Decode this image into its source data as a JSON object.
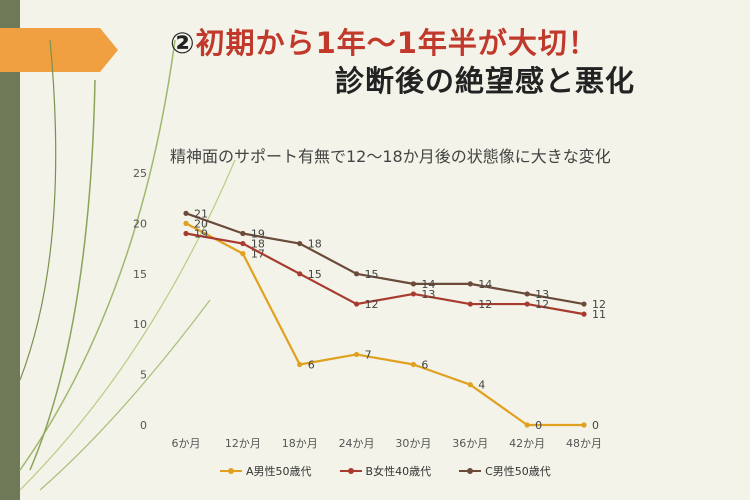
{
  "header": {
    "num": "②",
    "title_line1": "初期から1年～1年半が大切！",
    "title_line2": "診断後の絶望感と悪化"
  },
  "chart_data": {
    "type": "line",
    "title": "精神面のサポート有無で12～18か月後の状態像に大きな変化",
    "categories": [
      "6か月",
      "12か月",
      "18か月",
      "24か月",
      "30か月",
      "36か月",
      "42か月",
      "48か月"
    ],
    "ylim": [
      0,
      25
    ],
    "yticks": [
      0,
      5,
      10,
      15,
      20,
      25
    ],
    "grid": false,
    "legend_position": "bottom",
    "series": [
      {
        "name": "A男性50歳代",
        "color": "#e0a020",
        "values": [
          20,
          17,
          6,
          7,
          6,
          4,
          0,
          0
        ]
      },
      {
        "name": "B女性40歳代",
        "color": "#a83a2e",
        "values": [
          19,
          18,
          15,
          12,
          13,
          12,
          12,
          11
        ]
      },
      {
        "name": "C男性50歳代",
        "color": "#6b4a3a",
        "values": [
          21,
          19,
          18,
          15,
          14,
          14,
          13,
          12
        ]
      }
    ]
  }
}
